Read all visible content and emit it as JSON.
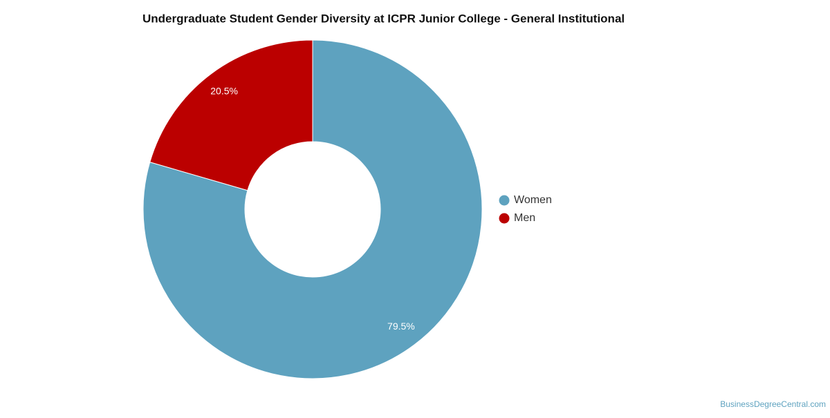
{
  "chart_data": {
    "type": "donut",
    "title": "Undergraduate Student Gender Diversity at ICPR Junior College - General Institutional",
    "categories": [
      "Women",
      "Men"
    ],
    "values": [
      79.5,
      20.5
    ],
    "value_labels": [
      "79.5%",
      "20.5%"
    ],
    "colors": [
      "#5ea2bf",
      "#bb0000"
    ],
    "legend": "right",
    "credit": "BusinessDegreeCentral.com"
  }
}
